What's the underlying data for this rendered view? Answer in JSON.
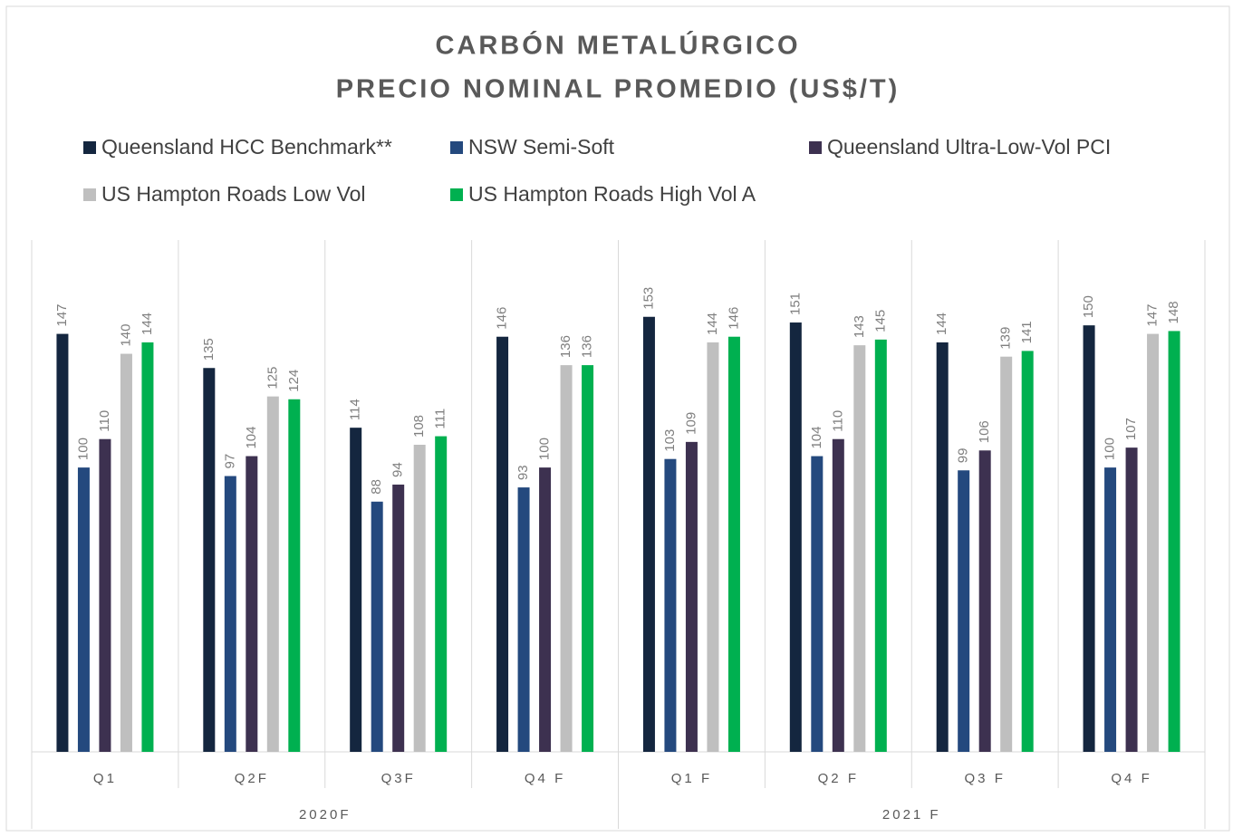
{
  "chart_data": {
    "type": "bar",
    "title": "CARBÓN METALÚRGICO",
    "subtitle": "PRECIO NOMINAL PROMEDIO (US$/T)",
    "categories": [
      "Q1",
      "Q2F",
      "Q3F",
      "Q4  F",
      "Q1  F",
      "Q2  F",
      "Q3  F",
      "Q4  F"
    ],
    "groups": [
      "2020F",
      "2021 F"
    ],
    "ylim": [
      0,
      180
    ],
    "series": [
      {
        "name": "Queensland HCC Benchmark**",
        "color": "#14263f",
        "values": [
          147,
          135,
          114,
          146,
          153,
          151,
          144,
          150
        ]
      },
      {
        "name": "NSW Semi-Soft",
        "color": "#24497e",
        "values": [
          100,
          97,
          88,
          93,
          103,
          104,
          99,
          100
        ]
      },
      {
        "name": "Queensland Ultra-Low-Vol PCI",
        "color": "#3d3150",
        "values": [
          110,
          104,
          94,
          100,
          109,
          110,
          106,
          107
        ]
      },
      {
        "name": "US Hampton Roads Low Vol",
        "color": "#bfbfbf",
        "values": [
          140,
          125,
          108,
          136,
          144,
          143,
          139,
          147
        ]
      },
      {
        "name": "US Hampton Roads High Vol A",
        "color": "#00b050",
        "values": [
          144,
          124,
          111,
          136,
          146,
          145,
          141,
          148
        ]
      }
    ]
  }
}
